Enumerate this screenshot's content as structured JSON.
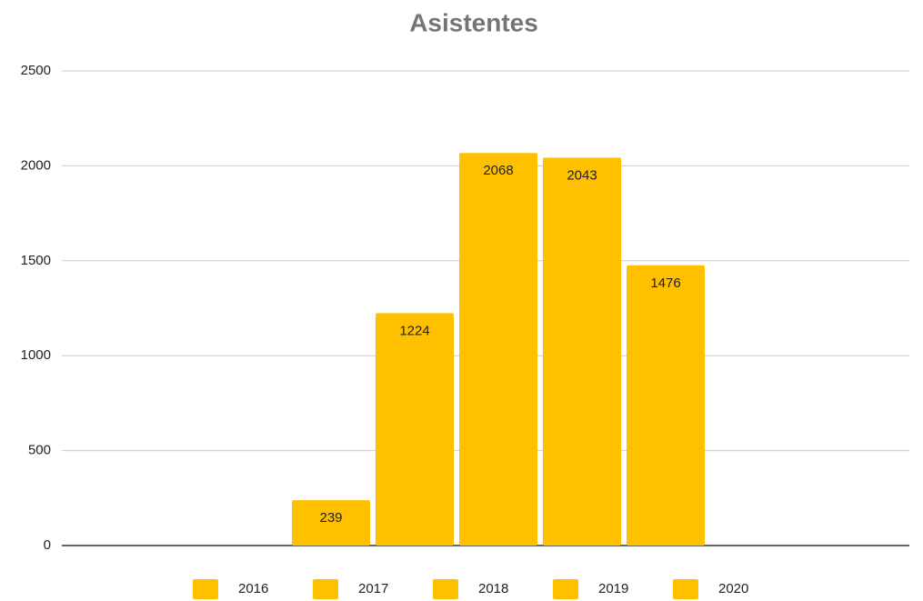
{
  "chart_data": {
    "type": "bar",
    "title": "Asistentes",
    "categories": [
      null
    ],
    "series": [
      {
        "name": "2016",
        "color": "#ffc000",
        "values": [
          239
        ]
      },
      {
        "name": "2017",
        "color": "#ffc000",
        "values": [
          1224
        ]
      },
      {
        "name": "2018",
        "color": "#ffc000",
        "values": [
          2068
        ]
      },
      {
        "name": "2019",
        "color": "#ffc000",
        "values": [
          2043
        ]
      },
      {
        "name": "2020",
        "color": "#ffc000",
        "values": [
          1476
        ]
      }
    ],
    "ylim": [
      0,
      2500
    ],
    "yticks": [
      0,
      500,
      1000,
      1500,
      2000,
      2500
    ],
    "grid": true,
    "legend": "bottom"
  }
}
